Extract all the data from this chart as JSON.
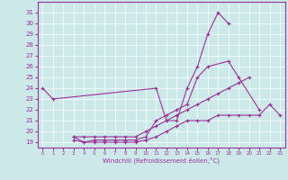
{
  "xlabel": "Windchill (Refroidissement éolien,°C)",
  "x": [
    0,
    1,
    2,
    3,
    4,
    5,
    6,
    7,
    8,
    9,
    10,
    11,
    12,
    13,
    14,
    15,
    16,
    17,
    18,
    19,
    20,
    21,
    22,
    23
  ],
  "line1": [
    24,
    23,
    null,
    null,
    null,
    null,
    null,
    null,
    null,
    null,
    null,
    24,
    21,
    21,
    24,
    26,
    29,
    31,
    30,
    null,
    null,
    null,
    null,
    null
  ],
  "line2": [
    null,
    null,
    null,
    19.5,
    19.0,
    19.2,
    19.2,
    19.2,
    19.2,
    19.2,
    19.5,
    21.0,
    21.5,
    22.0,
    22.5,
    25.0,
    26.0,
    null,
    26.5,
    25.0,
    null,
    22.0,
    null,
    null
  ],
  "line3": [
    null,
    null,
    null,
    19.5,
    19.5,
    19.5,
    19.5,
    19.5,
    19.5,
    19.5,
    20.0,
    20.5,
    21.0,
    21.5,
    22.0,
    22.5,
    23.0,
    23.5,
    24.0,
    24.5,
    25.0,
    null,
    null,
    null
  ],
  "line4": [
    null,
    null,
    null,
    19.2,
    19.0,
    19.0,
    19.0,
    19.0,
    19.0,
    19.0,
    19.2,
    19.5,
    20.0,
    20.5,
    21.0,
    21.0,
    21.0,
    21.5,
    21.5,
    21.5,
    21.5,
    21.5,
    22.5,
    21.5
  ],
  "ylim": [
    18.5,
    32
  ],
  "xlim": [
    -0.5,
    23.5
  ],
  "yticks": [
    19,
    20,
    21,
    22,
    23,
    24,
    25,
    26,
    27,
    28,
    29,
    30,
    31
  ],
  "xticks": [
    0,
    1,
    2,
    3,
    4,
    5,
    6,
    7,
    8,
    9,
    10,
    11,
    12,
    13,
    14,
    15,
    16,
    17,
    18,
    19,
    20,
    21,
    22,
    23
  ],
  "line_color": "#993399",
  "bg_color": "#cce8e8",
  "marker": "+",
  "markersize": 3,
  "linewidth": 0.8
}
